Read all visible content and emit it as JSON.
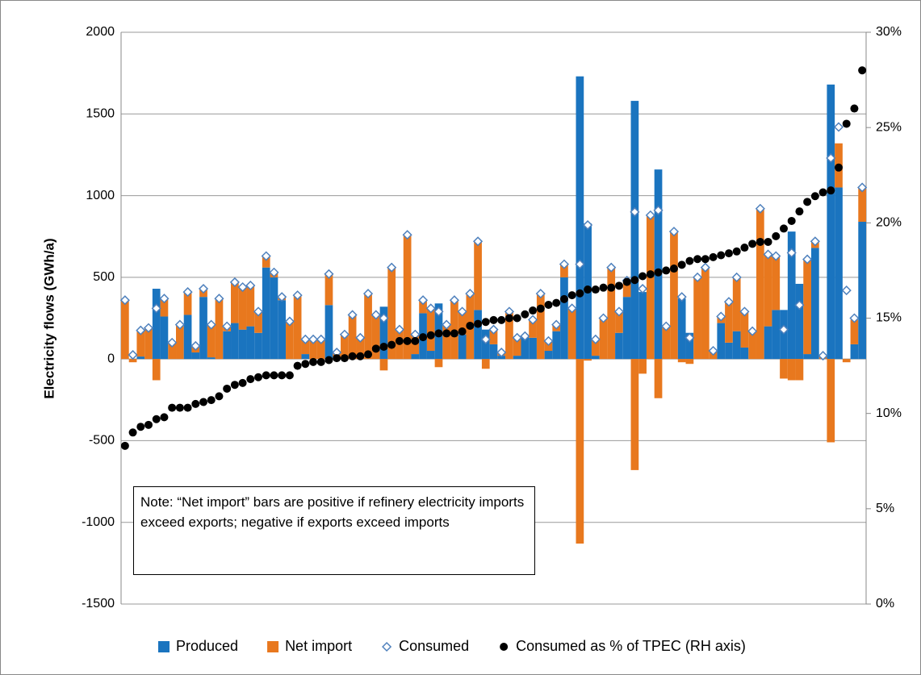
{
  "chart_data": {
    "type": "bar",
    "y_label": "Electricity flows (GWh/a)",
    "annotation": "Note: “Net import” bars are positive if refinery electricity imports exceed exports; negative if exports exceed imports",
    "categories": [
      null,
      null,
      null,
      null,
      null,
      null,
      null,
      null,
      null,
      null,
      null,
      null,
      null,
      null,
      null,
      null,
      null,
      null,
      null,
      null,
      null,
      null,
      null,
      null,
      null,
      null,
      null,
      null,
      null,
      null,
      null,
      null,
      null,
      null,
      null,
      null,
      null,
      null,
      null,
      null,
      null,
      null,
      null,
      null,
      null,
      null,
      null,
      null,
      null,
      null,
      null,
      null,
      null,
      null,
      null,
      null,
      null,
      null,
      null,
      null,
      null,
      null,
      null,
      null,
      null,
      null,
      null,
      null,
      null,
      null,
      null,
      null,
      null,
      null,
      null,
      null,
      null,
      null,
      null,
      null,
      null,
      null,
      null,
      null,
      null,
      null,
      null,
      null,
      null,
      null,
      null,
      null,
      null,
      null,
      null
    ],
    "ylim": [
      -1500,
      2000
    ],
    "yticks": [
      -1500,
      -1000,
      -500,
      0,
      500,
      1000,
      1500,
      2000
    ],
    "y2lim": [
      0,
      30
    ],
    "y2ticks": [
      {
        "value": 0,
        "label": "0%"
      },
      {
        "value": 5,
        "label": "5%"
      },
      {
        "value": 10,
        "label": "10%"
      },
      {
        "value": 15,
        "label": "15%"
      },
      {
        "value": 20,
        "label": "20%"
      },
      {
        "value": 25,
        "label": "25%"
      },
      {
        "value": 30,
        "label": "30%"
      }
    ],
    "grid": true,
    "legend": "bottom",
    "series": [
      {
        "name": "Produced",
        "type": "bar",
        "color": "#1a74bf",
        "values": [
          0,
          0,
          15,
          0,
          430,
          260,
          0,
          0,
          270,
          40,
          380,
          10,
          0,
          170,
          220,
          180,
          200,
          160,
          560,
          500,
          360,
          0,
          0,
          30,
          0,
          0,
          330,
          0,
          0,
          0,
          0,
          0,
          0,
          320,
          0,
          0,
          0,
          30,
          280,
          50,
          340,
          0,
          0,
          150,
          0,
          300,
          180,
          90,
          20,
          0,
          20,
          140,
          130,
          0,
          50,
          170,
          500,
          0,
          1730,
          830,
          20,
          0,
          0,
          160,
          380,
          1580,
          410,
          0,
          1160,
          0,
          0,
          370,
          160,
          0,
          0,
          0,
          220,
          100,
          170,
          70,
          0,
          0,
          200,
          300,
          300,
          780,
          460,
          30,
          680,
          0,
          1680,
          1050,
          0,
          90,
          840
        ]
      },
      {
        "name": "Net import",
        "type": "bar",
        "color": "#e8781e",
        "values": [
          360,
          -20,
          160,
          190,
          -130,
          110,
          100,
          210,
          140,
          40,
          50,
          200,
          370,
          30,
          250,
          260,
          250,
          130,
          70,
          30,
          20,
          230,
          390,
          90,
          120,
          120,
          190,
          40,
          150,
          270,
          130,
          400,
          270,
          -70,
          560,
          180,
          760,
          120,
          80,
          260,
          -50,
          210,
          360,
          140,
          400,
          420,
          -60,
          90,
          20,
          290,
          110,
          0,
          110,
          400,
          60,
          40,
          80,
          310,
          -1130,
          -10,
          100,
          250,
          560,
          130,
          100,
          -680,
          -90,
          880,
          -240,
          200,
          780,
          -20,
          -30,
          500,
          560,
          50,
          40,
          250,
          330,
          220,
          170,
          920,
          440,
          330,
          -120,
          -130,
          -130,
          580,
          40,
          20,
          -510,
          270,
          -20,
          150,
          210
        ]
      },
      {
        "name": "Consumed",
        "type": "scatter",
        "color": "#4f81bd",
        "values": [
          360,
          25,
          175,
          190,
          310,
          370,
          100,
          210,
          410,
          80,
          430,
          210,
          370,
          200,
          470,
          440,
          450,
          290,
          630,
          530,
          380,
          230,
          390,
          120,
          120,
          120,
          520,
          40,
          150,
          270,
          130,
          400,
          270,
          250,
          560,
          180,
          760,
          150,
          360,
          310,
          290,
          210,
          360,
          290,
          400,
          720,
          120,
          180,
          40,
          290,
          130,
          140,
          240,
          400,
          110,
          210,
          580,
          310,
          580,
          820,
          120,
          250,
          560,
          290,
          480,
          900,
          430,
          880,
          910,
          200,
          780,
          380,
          130,
          500,
          560,
          50,
          260,
          350,
          500,
          290,
          170,
          920,
          640,
          630,
          180,
          650,
          330,
          610,
          720,
          20,
          1230,
          1420,
          420,
          250,
          1050
        ]
      },
      {
        "name": "Consumed as % of TPEC (RH axis)",
        "type": "scatter",
        "axis": "y2",
        "color": "#000000",
        "values": [
          8.3,
          9.0,
          9.3,
          9.4,
          9.7,
          9.8,
          10.3,
          10.3,
          10.3,
          10.5,
          10.6,
          10.7,
          10.9,
          11.3,
          11.5,
          11.6,
          11.8,
          11.9,
          12.0,
          12.0,
          12.0,
          12.0,
          12.5,
          12.6,
          12.7,
          12.7,
          12.8,
          12.9,
          12.9,
          13.0,
          13.0,
          13.1,
          13.4,
          13.5,
          13.6,
          13.8,
          13.8,
          13.8,
          14.0,
          14.1,
          14.2,
          14.2,
          14.2,
          14.3,
          14.6,
          14.7,
          14.8,
          14.9,
          14.9,
          15.0,
          15.0,
          15.2,
          15.4,
          15.5,
          15.7,
          15.8,
          16.0,
          16.2,
          16.3,
          16.5,
          16.5,
          16.6,
          16.6,
          16.7,
          16.9,
          17.0,
          17.2,
          17.3,
          17.4,
          17.5,
          17.6,
          17.8,
          18.0,
          18.1,
          18.1,
          18.2,
          18.3,
          18.4,
          18.5,
          18.7,
          18.9,
          19.0,
          19.0,
          19.3,
          19.7,
          20.1,
          20.6,
          21.1,
          21.4,
          21.6,
          21.7,
          22.9,
          25.2,
          26.0,
          28.0
        ]
      }
    ]
  }
}
